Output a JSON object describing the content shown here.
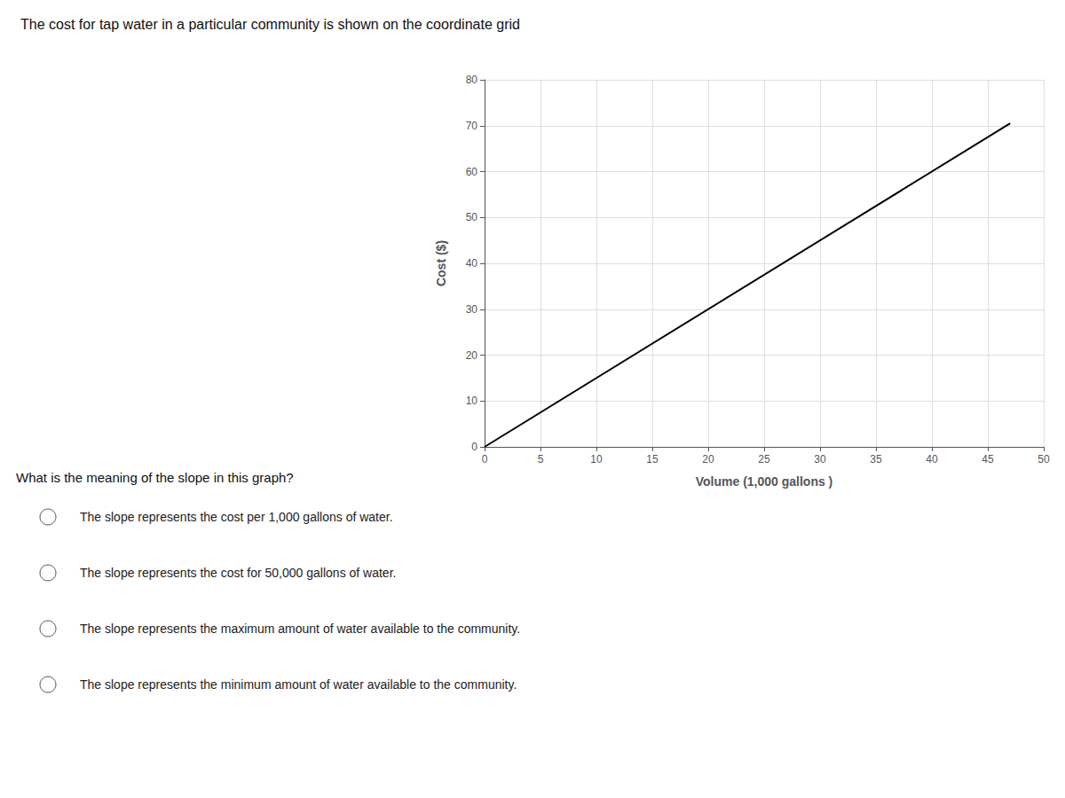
{
  "chart_data": {
    "type": "line",
    "title": "The cost for tap water in a particular community is shown on the coordinate grid",
    "xlabel": "Volume (1,000 gallons )",
    "ylabel": "Cost ($)",
    "x": [
      0,
      47
    ],
    "values": [
      0,
      70.5
    ],
    "color": "#000000",
    "xlim": [
      0,
      50
    ],
    "ylim": [
      0,
      80
    ],
    "xticks": [
      0,
      5,
      10,
      15,
      20,
      25,
      30,
      35,
      40,
      45,
      50
    ],
    "yticks": [
      0,
      10,
      20,
      30,
      40,
      50,
      60,
      70,
      80
    ],
    "grid": true,
    "annotations": [
      "What is the meaning of the slope in this graph?",
      "The slope represents the cost per 1,000 gallons of water.",
      "The slope represents the cost for 50,000 gallons of water.",
      "The slope represents the maximum amount of water available to the community.",
      "The slope represents the minimum amount of water available to the community."
    ]
  }
}
